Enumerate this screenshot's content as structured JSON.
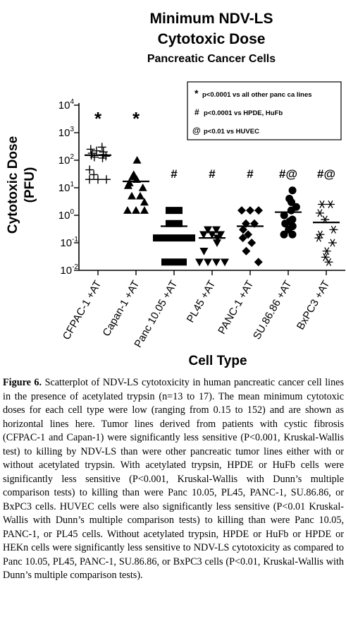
{
  "chart_data": {
    "type": "scatter",
    "title": "Minimum NDV-LS",
    "title2": "Cytotoxic Dose",
    "subtitle": "Pancreatic Cancer Cells",
    "ylabel": "Cytotoxic Dose",
    "ylabel2": "(PFU)",
    "xlabel": "Cell Type",
    "yscale": "log",
    "ylim": [
      0.01,
      10000
    ],
    "yticks": [
      {
        "base": "10",
        "exp": "4",
        "value": 10000
      },
      {
        "base": "10",
        "exp": "3",
        "value": 1000
      },
      {
        "base": "10",
        "exp": "2",
        "value": 100
      },
      {
        "base": "10",
        "exp": "1",
        "value": 10
      },
      {
        "base": "10",
        "exp": "0",
        "value": 1
      },
      {
        "base": "10",
        "exp": "-1",
        "value": 0.1
      },
      {
        "base": "10",
        "exp": "-2",
        "value": 0.01
      }
    ],
    "legend": {
      "placement": "top-right",
      "entries": [
        {
          "symbol": "*",
          "text": "p<0.0001 vs all other panc ca lines"
        },
        {
          "symbol": "#",
          "text": "p<0.0001 vs HPDE, HuFb"
        },
        {
          "symbol": "@",
          "text": "p<0.01 vs HUVEC"
        }
      ]
    },
    "categories": [
      {
        "label": "CFPAC-1 +AT",
        "marker": "plus",
        "annotation": "*",
        "mean": 152,
        "points": [
          300,
          250,
          220,
          200,
          180,
          160,
          150,
          140,
          130,
          120,
          45,
          30,
          20,
          20,
          20
        ]
      },
      {
        "label": "Capan-1 +AT",
        "marker": "triangle",
        "annotation": "*",
        "mean": 17,
        "points": [
          100,
          30,
          25,
          20,
          15,
          12,
          10,
          5,
          5,
          3,
          1.5,
          1.5,
          1.5
        ]
      },
      {
        "label": "Panc 10.05 +AT",
        "marker": "square",
        "annotation": "#",
        "mean": 0.4,
        "points": [
          1.5,
          1.5,
          0.5,
          0.5,
          0.15,
          0.15,
          0.15,
          0.15,
          0.15,
          0.02,
          0.02,
          0.02
        ]
      },
      {
        "label": "PL45 +AT",
        "marker": "triangle-down",
        "annotation": "#",
        "mean": 0.15,
        "points": [
          0.3,
          0.3,
          0.2,
          0.2,
          0.2,
          0.15,
          0.1,
          0.05,
          0.02,
          0.02,
          0.02,
          0.02
        ]
      },
      {
        "label": "PANC-1 +AT",
        "marker": "diamond",
        "annotation": "#",
        "mean": 0.4,
        "points": [
          1.5,
          1.5,
          1.5,
          0.5,
          0.5,
          0.3,
          0.2,
          0.15,
          0.1,
          0.05,
          0.02
        ]
      },
      {
        "label": "SU.86.86 +AT",
        "marker": "circle",
        "annotation": "#@",
        "mean": 1.3,
        "points": [
          8,
          4,
          3,
          2,
          1.5,
          1,
          0.7,
          0.6,
          0.5,
          0.4,
          0.3,
          0.2,
          0.2
        ]
      },
      {
        "label": "BxPC3 +AT",
        "marker": "asterisk",
        "annotation": "#@",
        "mean": 0.55,
        "points": [
          2.5,
          2.5,
          1.2,
          0.7,
          0.3,
          0.2,
          0.15,
          0.1,
          0.05,
          0.03,
          0.02
        ]
      }
    ]
  },
  "caption": {
    "label": "Figure 6.",
    "text": " Scatterplot of NDV-LS cytotoxicity in human pancreatic cancer cell lines in the presence of acetylated trypsin (n=13 to 17). The mean minimum cytotoxic doses for each cell type were low (ranging from 0.15 to 152) and are shown as horizontal lines here. Tumor lines derived from patients with cystic fibrosis (CFPAC-1 and Capan-1) were significantly less sensitive (P<0.001, Kruskal-Wallis test) to killing by NDV-LS than were other pancreatic tumor lines either with or without acetylated trypsin. With acetylated trypsin, HPDE or HuFb cells were significantly less sensitive (P<0.001, Kruskal-Wallis with Dunn’s multiple comparison tests) to killing than were Panc 10.05, PL45, PANC-1, SU.86.86, or BxPC3 cells. HUVEC cells were also significantly less sensitive (P<0.01 Kruskal-Wallis with Dunn’s multiple comparison tests) to killing than were Panc 10.05, PANC-1, or PL45 cells. Without acetylated trypsin, HPDE or HuFb or HPDE or HEKn cells were significantly less sensitive to NDV-LS cytotoxicity as compared to Panc 10.05, PL45, PANC-1, SU.86.86, or BxPC3 cells (P<0.01, Kruskal-Wallis with Dunn’s multiple comparison tests)."
  }
}
